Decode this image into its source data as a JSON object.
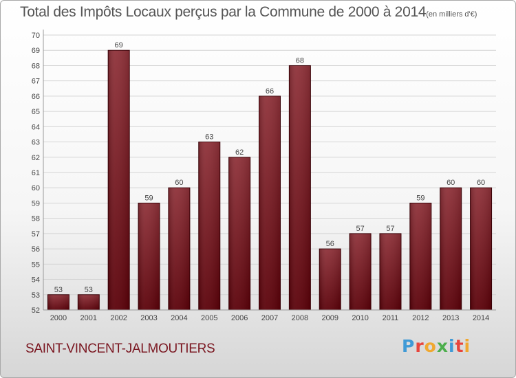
{
  "header": {
    "title": "Total des Impôts Locaux perçus par la Commune de 2000 à 2014",
    "unit": "(en milliers d'€)"
  },
  "commune": "SAINT-VINCENT-JALMOUTIERS",
  "logo": {
    "letters": [
      "P",
      "r",
      "o",
      "x",
      "i",
      "t",
      "i"
    ],
    "colors": [
      "#3f9ad6",
      "#e8453c",
      "#f0a830",
      "#4cae4c",
      "#3f9ad6",
      "#e8453c",
      "#f0a830"
    ]
  },
  "colors": {
    "bar_top": "#8e3038",
    "bar_bottom": "#5a0008",
    "title_text": "#555555",
    "commune_text": "#7a1620"
  },
  "chart_data": {
    "type": "bar",
    "title": "Total des Impôts Locaux perçus par la Commune de 2000 à 2014",
    "unit": "(en milliers d'€)",
    "categories": [
      "2000",
      "2001",
      "2002",
      "2003",
      "2004",
      "2005",
      "2006",
      "2007",
      "2008",
      "2009",
      "2010",
      "2011",
      "2012",
      "2013",
      "2014"
    ],
    "values": [
      53,
      53,
      69,
      59,
      60,
      63,
      62,
      66,
      68,
      56,
      57,
      57,
      59,
      60,
      60
    ],
    "ylim": [
      52,
      70
    ],
    "yticks": [
      52,
      53,
      54,
      55,
      56,
      57,
      58,
      59,
      60,
      61,
      62,
      63,
      64,
      65,
      66,
      67,
      68,
      69,
      70
    ],
    "xlabel": "",
    "ylabel": "",
    "grid": true,
    "legend": "none"
  }
}
